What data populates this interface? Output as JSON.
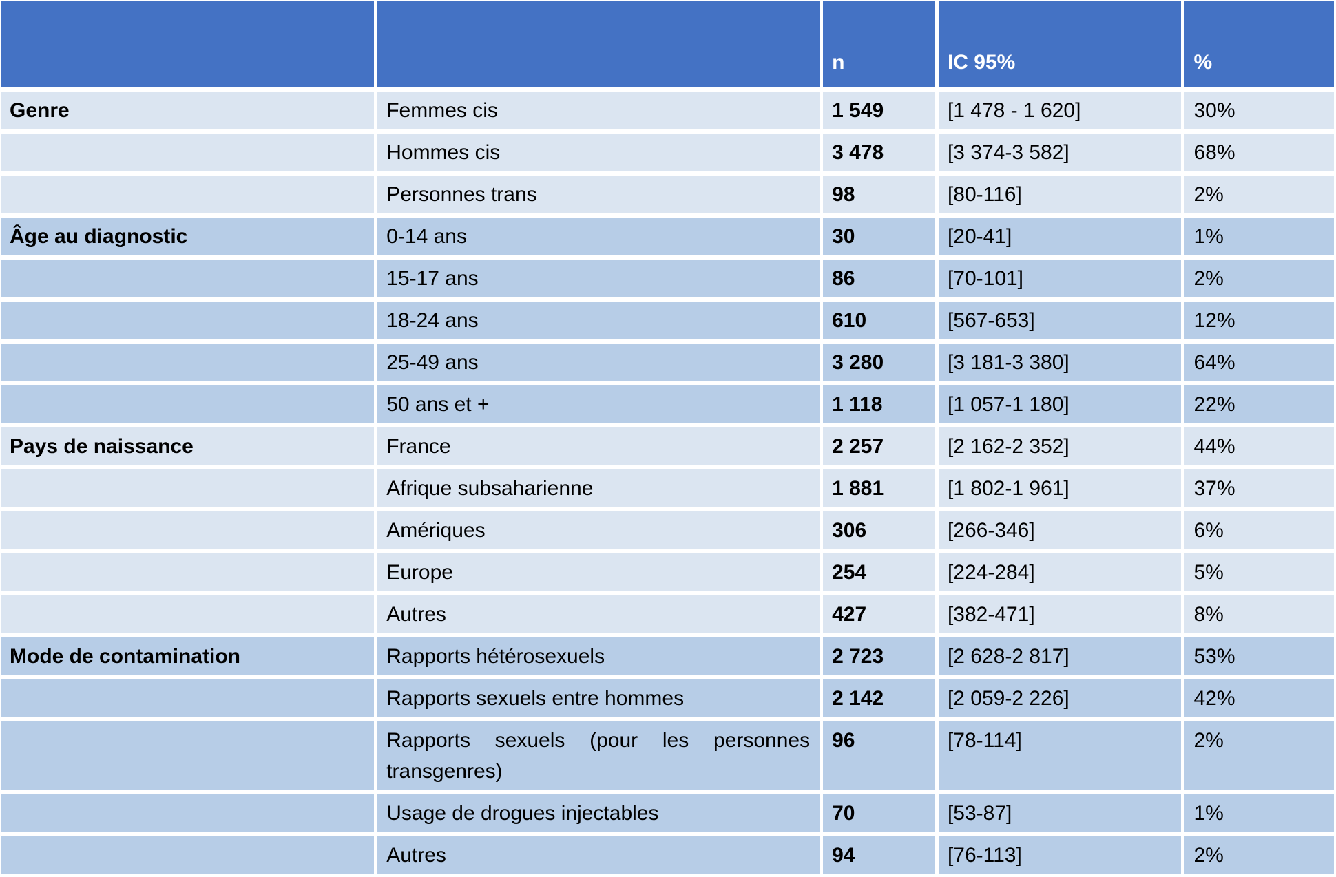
{
  "chart_data": {
    "type": "table",
    "title": "",
    "columns": [
      "",
      "",
      "n",
      "IC 95%",
      "%"
    ],
    "groups": [
      {
        "label": "Genre",
        "band": "light",
        "rows": [
          {
            "label": "Femmes cis",
            "n": "1 549",
            "ic": "[1 478 - 1 620]",
            "pct": "30%"
          },
          {
            "label": "Hommes cis",
            "n": "3 478",
            "ic": "[3 374-3 582]",
            "pct": "68%"
          },
          {
            "label": "Personnes trans",
            "n": "98",
            "ic": "[80-116]",
            "pct": "2%"
          }
        ]
      },
      {
        "label": "Âge au diagnostic",
        "band": "dark",
        "rows": [
          {
            "label": "0-14 ans",
            "n": "30",
            "ic": "[20-41]",
            "pct": "1%"
          },
          {
            "label": "15-17 ans",
            "n": "86",
            "ic": "[70-101]",
            "pct": "2%"
          },
          {
            "label": "18-24 ans",
            "n": "610",
            "ic": "[567-653]",
            "pct": "12%"
          },
          {
            "label": "25-49 ans",
            "n": "3 280",
            "ic": "[3 181-3 380]",
            "pct": "64%"
          },
          {
            "label": "50 ans et +",
            "n": "1 118",
            "ic": "[1 057-1 180]",
            "pct": "22%"
          }
        ]
      },
      {
        "label": "Pays de naissance",
        "band": "light",
        "rows": [
          {
            "label": "France",
            "n": "2 257",
            "ic": "[2 162-2 352]",
            "pct": "44%"
          },
          {
            "label": "Afrique subsaharienne",
            "n": "1 881",
            "ic": "[1 802-1 961]",
            "pct": "37%"
          },
          {
            "label": "Amériques",
            "n": "306",
            "ic": "[266-346]",
            "pct": "6%"
          },
          {
            "label": "Europe",
            "n": "254",
            "ic": "[224-284]",
            "pct": "5%"
          },
          {
            "label": "Autres",
            "n": "427",
            "ic": "[382-471]",
            "pct": "8%"
          }
        ]
      },
      {
        "label": "Mode de contamination",
        "band": "dark",
        "rows": [
          {
            "label": "Rapports hétérosexuels",
            "n": "2 723",
            "ic": "[2 628-2 817]",
            "pct": "53%"
          },
          {
            "label": "Rapports sexuels entre hommes",
            "n": "2 142",
            "ic": "[2 059-2 226]",
            "pct": "42%"
          },
          {
            "label": "Rapports sexuels (pour les personnes transgenres)",
            "n": "96",
            "ic": "[78-114]",
            "pct": "2%"
          },
          {
            "label": "Usage de drogues injectables",
            "n": "70",
            "ic": "[53-87]",
            "pct": "1%"
          },
          {
            "label": "Autres",
            "n": "94",
            "ic": "[76-113]",
            "pct": "2%"
          }
        ]
      }
    ],
    "layout": {
      "legend": "none",
      "grid": "white gutters between cells",
      "banding": "by category group"
    }
  },
  "colors": {
    "header_bg": "#4472C4",
    "header_text": "#FFFFFF",
    "band_light": "#DBE5F1",
    "band_dark": "#B7CDE7",
    "text": "#000000"
  }
}
